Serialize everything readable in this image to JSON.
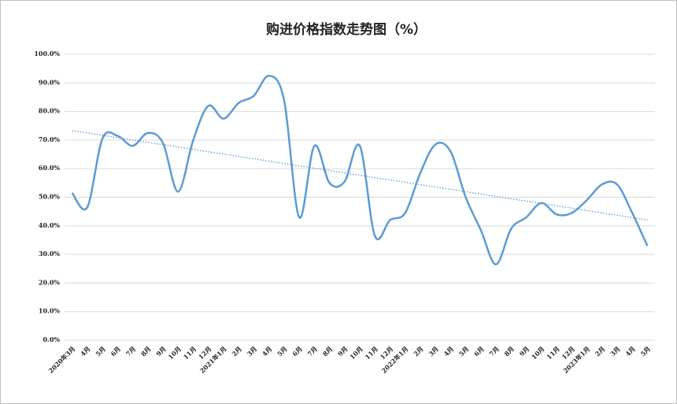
{
  "chart_data": {
    "type": "line",
    "title": "购进价格指数走势图（%）",
    "categories": [
      "2020年3月",
      "4月",
      "5月",
      "6月",
      "7月",
      "8月",
      "9月",
      "10月",
      "11月",
      "12月",
      "2021年1月",
      "2月",
      "3月",
      "4月",
      "5月",
      "6月",
      "7月",
      "8月",
      "9月",
      "10月",
      "11月",
      "12月",
      "2022年1月",
      "2月",
      "3月",
      "4月",
      "5月",
      "6月",
      "7月",
      "8月",
      "9月",
      "10月",
      "11月",
      "12月",
      "2023年1月",
      "2月",
      "3月",
      "4月",
      "5月"
    ],
    "series": [
      {
        "color": "#5b9bd5",
        "values": [
          51.5,
          46.5,
          70.5,
          71.5,
          68,
          72.5,
          69,
          52,
          70,
          82,
          77.5,
          83,
          85.5,
          92.5,
          84,
          43,
          68,
          55,
          55.5,
          68,
          36.5,
          42,
          44.5,
          58.5,
          68.5,
          66,
          50,
          38.5,
          26.5,
          39,
          43,
          48,
          44,
          44.5,
          49,
          54.5,
          54.5,
          44.5,
          33
        ]
      }
    ],
    "trendline": true,
    "ylim": [
      0,
      100
    ],
    "yticks": [
      {
        "value": 0,
        "label": "0.0%"
      },
      {
        "value": 10,
        "label": "10.0%"
      },
      {
        "value": 20,
        "label": "20.0%"
      },
      {
        "value": 30,
        "label": "30.0%"
      },
      {
        "value": 40,
        "label": "40.0%"
      },
      {
        "value": 50,
        "label": "50.0%"
      },
      {
        "value": 60,
        "label": "60.0%"
      },
      {
        "value": 70,
        "label": "70.0%"
      },
      {
        "value": 80,
        "label": "80.0%"
      },
      {
        "value": 90,
        "label": "90.0%"
      },
      {
        "value": 100,
        "label": "100.0%"
      }
    ],
    "grid": true
  }
}
